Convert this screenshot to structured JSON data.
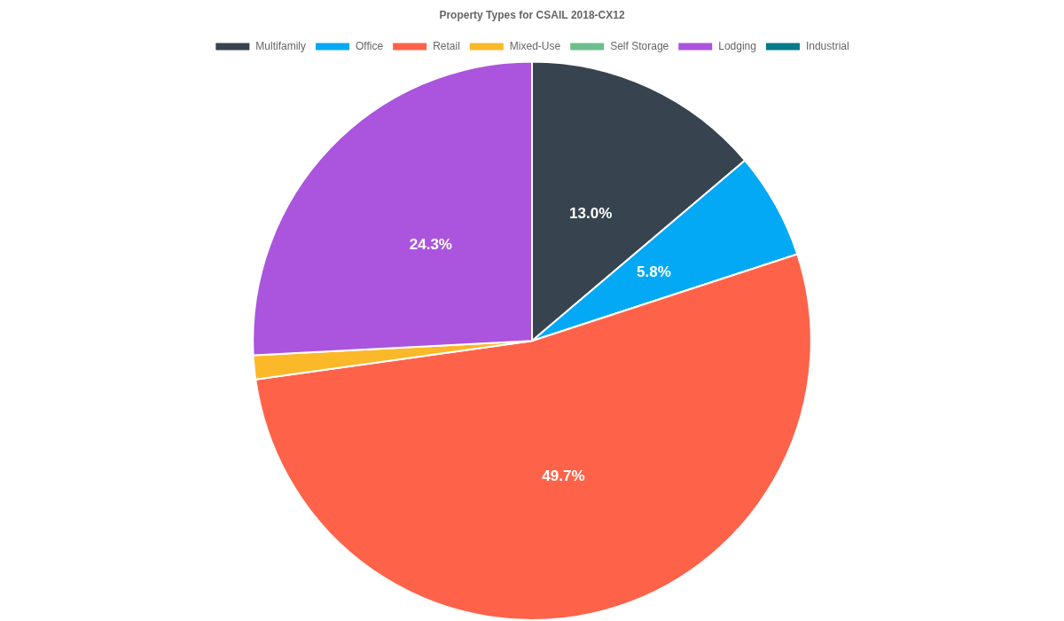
{
  "chart_data": {
    "type": "pie",
    "title": "Property Types for CSAIL 2018-CX12",
    "categories": [
      "Multifamily",
      "Office",
      "Retail",
      "Mixed-Use",
      "Self Storage",
      "Lodging",
      "Industrial"
    ],
    "values": [
      13.0,
      5.8,
      49.7,
      1.3,
      0,
      24.3,
      0
    ],
    "value_labels": [
      "13.0%",
      "5.8%",
      "49.7%",
      null,
      null,
      "24.3%",
      null
    ],
    "colors": [
      "#37444f",
      "#03a9f4",
      "#fe6349",
      "#fbb829",
      "#6cbf8c",
      "#ab54dd",
      "#037b8a"
    ],
    "legend": "top",
    "data_labels": true
  }
}
